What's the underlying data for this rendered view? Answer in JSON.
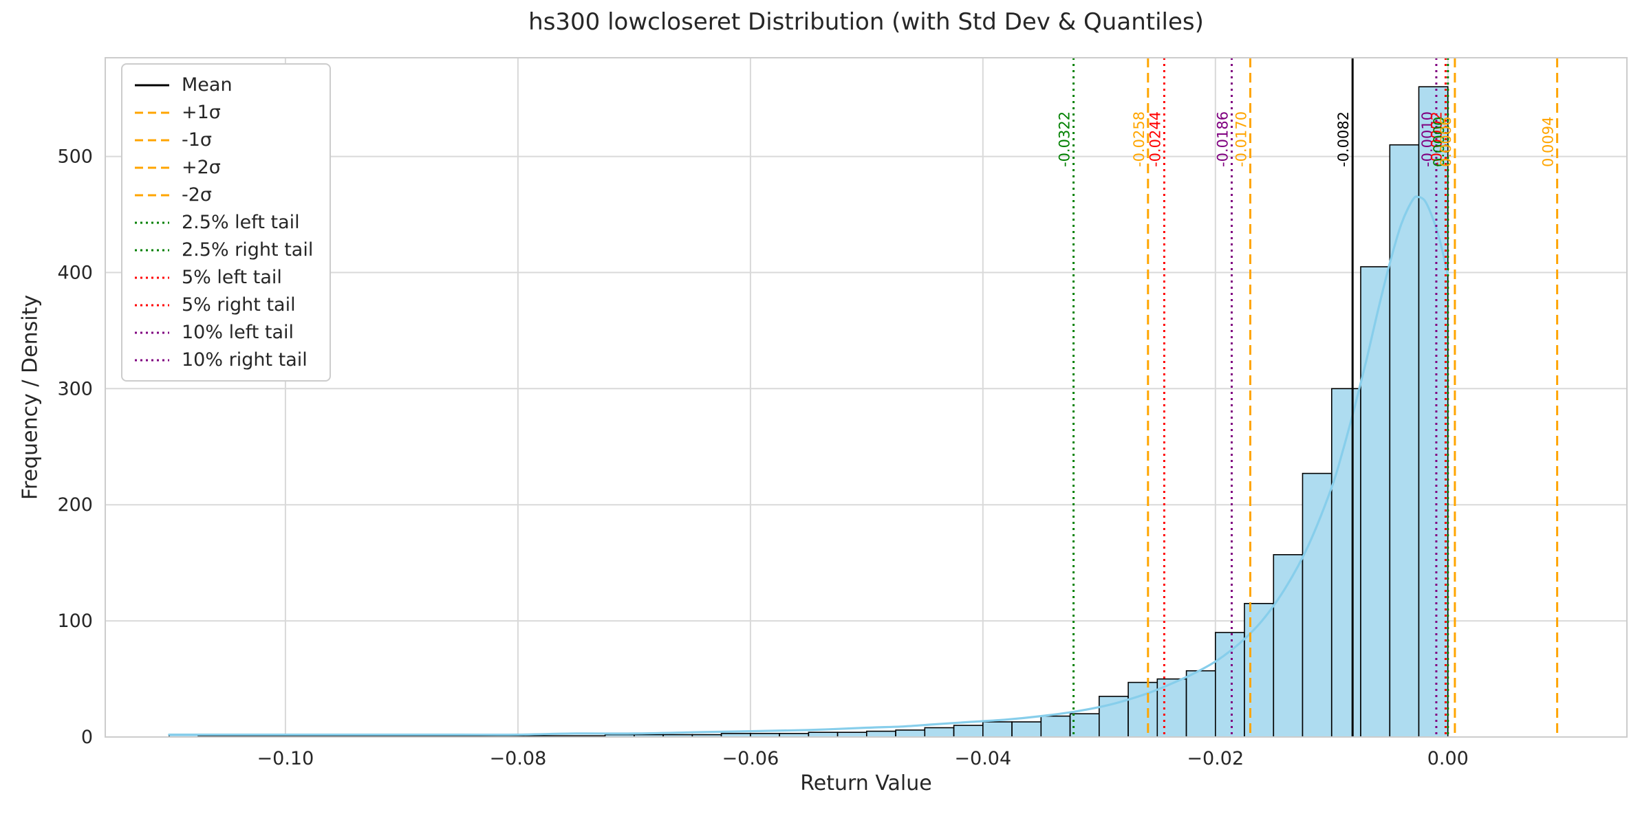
{
  "chart_data": {
    "type": "bar",
    "subtype": "histogram_with_kde",
    "title": "hs300 lowcloseret Distribution (with Std Dev & Quantiles)",
    "xlabel": "Return Value",
    "ylabel": "Frequency / Density",
    "xlim": [
      -0.1155,
      0.0154
    ],
    "ylim": [
      0,
      585
    ],
    "grid": true,
    "legend_position": "upper left",
    "xticks": [
      -0.1,
      -0.08,
      -0.06,
      -0.04,
      -0.02,
      0.0
    ],
    "xtick_labels": [
      "−0.10",
      "−0.08",
      "−0.06",
      "−0.04",
      "−0.02",
      "0.00"
    ],
    "yticks": [
      0,
      100,
      200,
      300,
      400,
      500
    ],
    "bin_width": 0.0025,
    "bin_left": [
      -0.11,
      -0.1075,
      -0.105,
      -0.1025,
      -0.1,
      -0.0975,
      -0.095,
      -0.0925,
      -0.09,
      -0.0875,
      -0.085,
      -0.0825,
      -0.08,
      -0.0775,
      -0.075,
      -0.0725,
      -0.07,
      -0.0675,
      -0.065,
      -0.0625,
      -0.06,
      -0.0575,
      -0.055,
      -0.0525,
      -0.05,
      -0.0475,
      -0.045,
      -0.0425,
      -0.04,
      -0.0375,
      -0.035,
      -0.0325,
      -0.03,
      -0.0275,
      -0.025,
      -0.0225,
      -0.02,
      -0.0175,
      -0.015,
      -0.0125,
      -0.01,
      -0.0075,
      -0.005,
      -0.0025
    ],
    "counts": [
      2,
      1,
      1,
      1,
      1,
      1,
      1,
      1,
      1,
      1,
      1,
      1,
      1,
      1,
      1,
      2,
      2,
      2,
      2,
      3,
      3,
      3,
      4,
      4,
      5,
      6,
      8,
      10,
      13,
      13,
      18,
      20,
      35,
      47,
      50,
      57,
      90,
      115,
      157,
      227,
      300,
      405,
      510,
      560
    ],
    "kde_points": [
      [
        -0.11,
        2
      ],
      [
        -0.105,
        2
      ],
      [
        -0.1,
        2
      ],
      [
        -0.095,
        2
      ],
      [
        -0.09,
        2
      ],
      [
        -0.085,
        2
      ],
      [
        -0.08,
        2
      ],
      [
        -0.075,
        3
      ],
      [
        -0.07,
        3
      ],
      [
        -0.065,
        4
      ],
      [
        -0.06,
        5
      ],
      [
        -0.055,
        6
      ],
      [
        -0.05,
        8
      ],
      [
        -0.047,
        9
      ],
      [
        -0.044,
        11
      ],
      [
        -0.041,
        13
      ],
      [
        -0.038,
        15
      ],
      [
        -0.035,
        18
      ],
      [
        -0.032,
        22
      ],
      [
        -0.029,
        28
      ],
      [
        -0.026,
        37
      ],
      [
        -0.024,
        45
      ],
      [
        -0.022,
        54
      ],
      [
        -0.02,
        65
      ],
      [
        -0.018,
        80
      ],
      [
        -0.016,
        100
      ],
      [
        -0.014,
        128
      ],
      [
        -0.012,
        165
      ],
      [
        -0.01,
        215
      ],
      [
        -0.009,
        248
      ],
      [
        -0.008,
        285
      ],
      [
        -0.007,
        325
      ],
      [
        -0.006,
        368
      ],
      [
        -0.005,
        408
      ],
      [
        -0.004,
        442
      ],
      [
        -0.003,
        463
      ],
      [
        -0.0025,
        465
      ],
      [
        -0.002,
        462
      ],
      [
        -0.0015,
        452
      ],
      [
        -0.001,
        438
      ],
      [
        -0.0005,
        420
      ],
      [
        0.0,
        398
      ]
    ],
    "vlines": [
      {
        "id": "q025-left",
        "label": "2.5% left tail",
        "value_label": "-0.0322",
        "x": -0.0322,
        "color": "#008000",
        "style": "dotted"
      },
      {
        "id": "minus-2-sigma",
        "label": "-2σ",
        "value_label": "-0.0258",
        "x": -0.0258,
        "color": "#FFA500",
        "style": "dashed"
      },
      {
        "id": "q05-left",
        "label": "5% left tail",
        "value_label": "-0.0244",
        "x": -0.0244,
        "color": "#FF0000",
        "style": "dotted"
      },
      {
        "id": "q10-left",
        "label": "10% left tail",
        "value_label": "-0.0186",
        "x": -0.0186,
        "color": "#800080",
        "style": "dotted"
      },
      {
        "id": "minus-1-sigma",
        "label": "-1σ",
        "value_label": "-0.0170",
        "x": -0.017,
        "color": "#FFA500",
        "style": "dashed"
      },
      {
        "id": "mean",
        "label": "Mean",
        "value_label": "-0.0082",
        "x": -0.0082,
        "color": "#000000",
        "style": "solid"
      },
      {
        "id": "q10-right",
        "label": "10% right tail",
        "value_label": "-0.0010",
        "x": -0.001,
        "color": "#800080",
        "style": "dotted"
      },
      {
        "id": "q05-right",
        "label": "5% right tail",
        "value_label": "-0.0002",
        "x": -0.0002,
        "color": "#FF0000",
        "style": "dotted"
      },
      {
        "id": "q025-right",
        "label": "2.5% right tail",
        "value_label": "0.0000",
        "x": 0.0,
        "color": "#008000",
        "style": "dotted"
      },
      {
        "id": "plus-1-sigma",
        "label": "+1σ",
        "value_label": "0.0006",
        "x": 0.0006,
        "color": "#FFA500",
        "style": "dashed"
      },
      {
        "id": "plus-2-sigma",
        "label": "+2σ",
        "value_label": "0.0094",
        "x": 0.0094,
        "color": "#FFA500",
        "style": "dashed"
      }
    ],
    "legend": [
      {
        "label": "Mean",
        "color": "#000000",
        "style": "solid"
      },
      {
        "label": "+1σ",
        "color": "#FFA500",
        "style": "dashed"
      },
      {
        "label": "-1σ",
        "color": "#FFA500",
        "style": "dashed"
      },
      {
        "label": "+2σ",
        "color": "#FFA500",
        "style": "dashed"
      },
      {
        "label": "-2σ",
        "color": "#FFA500",
        "style": "dashed"
      },
      {
        "label": "2.5% left tail",
        "color": "#008000",
        "style": "dotted"
      },
      {
        "label": "2.5% right tail",
        "color": "#008000",
        "style": "dotted"
      },
      {
        "label": "5% left tail",
        "color": "#FF0000",
        "style": "dotted"
      },
      {
        "label": "5% right tail",
        "color": "#FF0000",
        "style": "dotted"
      },
      {
        "label": "10% left tail",
        "color": "#800080",
        "style": "dotted"
      },
      {
        "label": "10% right tail",
        "color": "#800080",
        "style": "dotted"
      }
    ],
    "colors": {
      "hist_fill": "#aedcf0",
      "hist_edge": "#000000",
      "kde": "#87ceeb",
      "grid": "#d9d9d9",
      "spine": "#cccccc",
      "text": "#262626",
      "background": "#ffffff"
    }
  }
}
